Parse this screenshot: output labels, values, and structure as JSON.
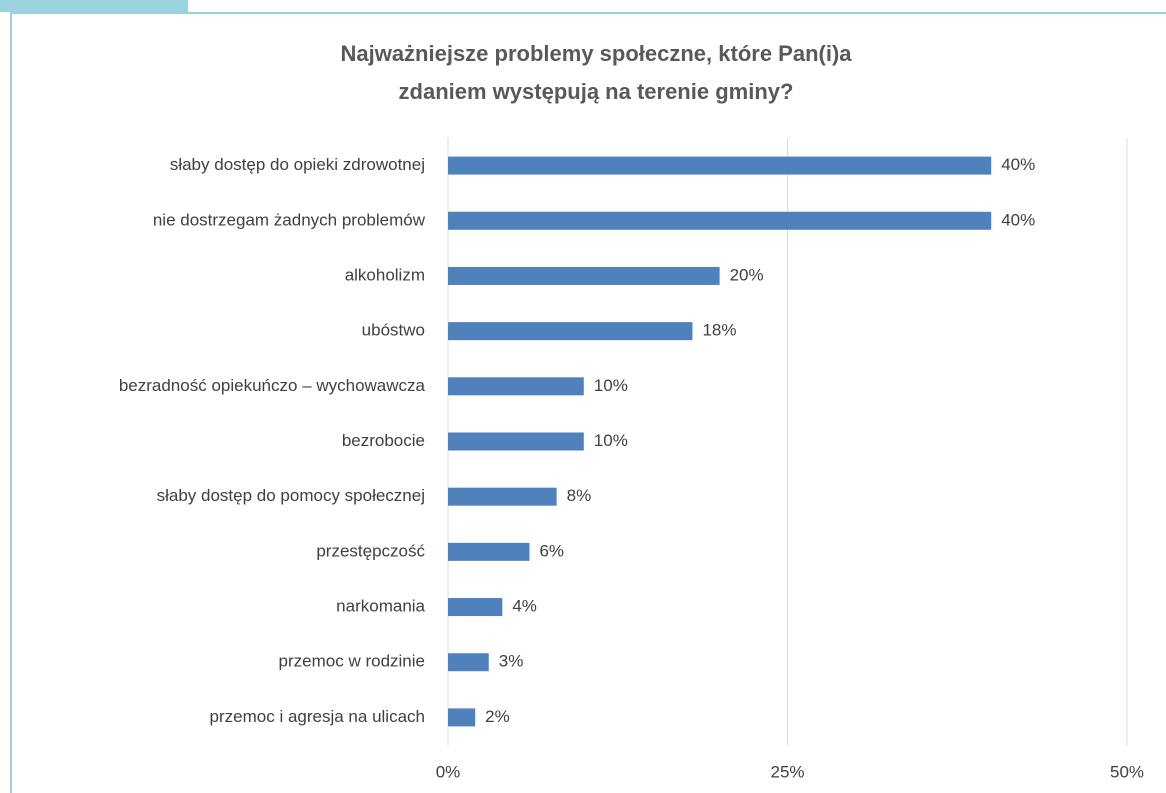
{
  "chart_data": {
    "type": "bar",
    "orientation": "horizontal",
    "title": [
      "Najważniejsze problemy społeczne, które Pan(i)a",
      "zdaniem występują na terenie gminy?"
    ],
    "categories": [
      "słaby dostęp do opieki zdrowotnej",
      "nie dostrzegam żadnych problemów",
      "alkoholizm",
      "ubóstwo",
      "bezradność opiekuńczo – wychowawcza",
      "bezrobocie",
      "słaby dostęp do pomocy społecznej",
      "przestępczość",
      "narkomania",
      "przemoc w rodzinie",
      "przemoc i agresja na ulicach"
    ],
    "values": [
      40,
      40,
      20,
      18,
      10,
      10,
      8,
      6,
      4,
      3,
      2
    ],
    "value_labels": [
      "40%",
      "40%",
      "20%",
      "18%",
      "10%",
      "10%",
      "8%",
      "6%",
      "4%",
      "3%",
      "2%"
    ],
    "color": "#4f81bd",
    "xlim": [
      0,
      50
    ],
    "xticks": [
      {
        "value": 0,
        "label": "0%"
      },
      {
        "value": 25,
        "label": "25%"
      },
      {
        "value": 50,
        "label": "50%"
      }
    ],
    "grid": true
  }
}
